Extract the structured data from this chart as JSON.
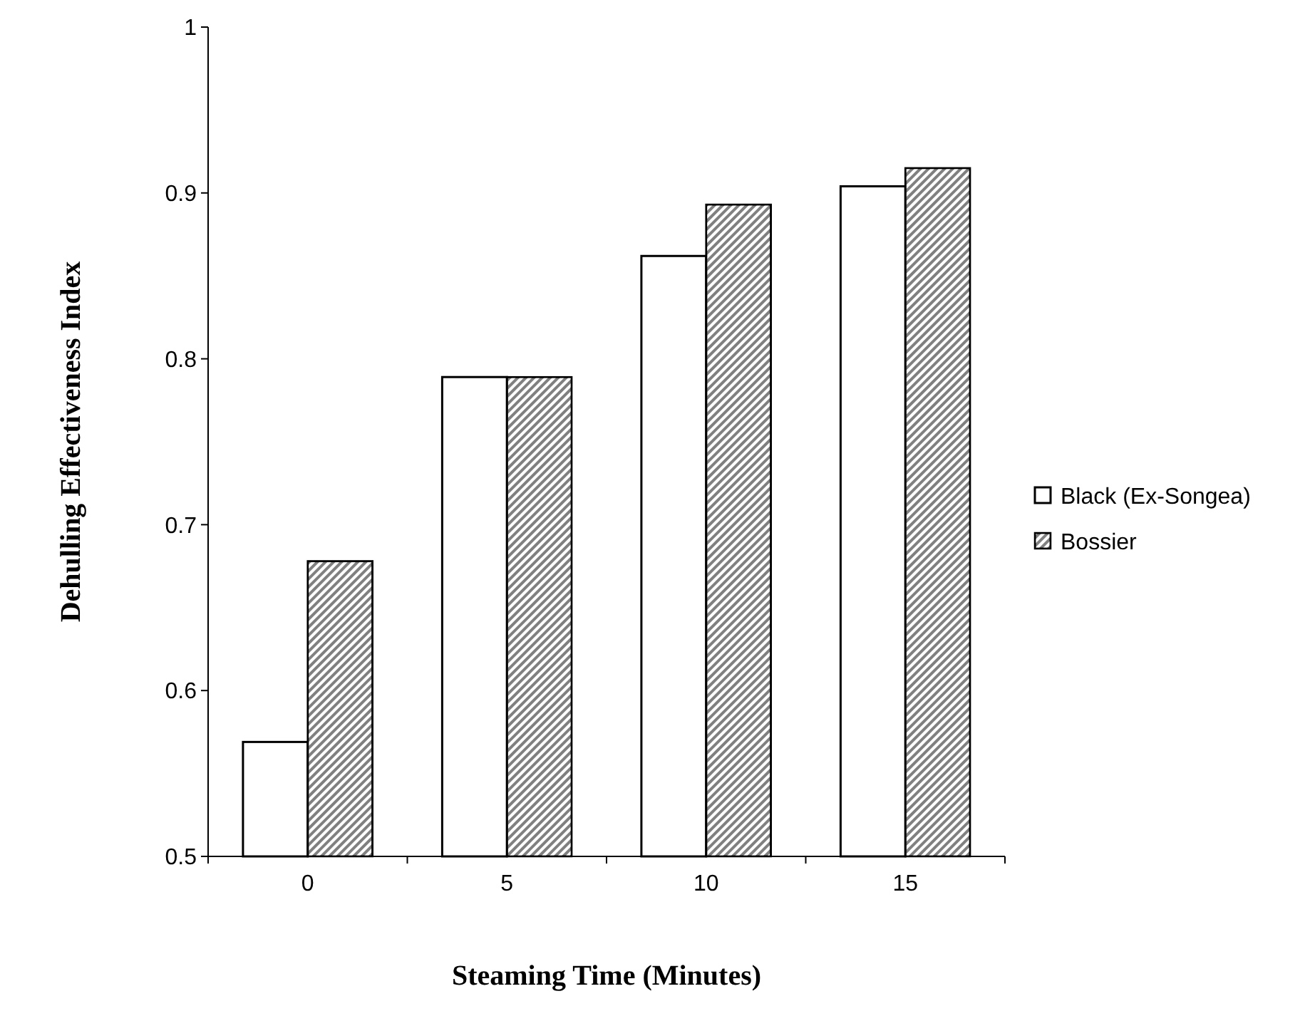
{
  "chart_data": {
    "type": "bar",
    "xlabel": "Steaming Time (Minutes)",
    "ylabel": "Dehulling Effectiveness Index",
    "categories": [
      "0",
      "5",
      "10",
      "15"
    ],
    "series": [
      {
        "name": "Black (Ex-Songea)",
        "color": "#ffffff",
        "values": [
          0.569,
          0.789,
          0.862,
          0.904
        ]
      },
      {
        "name": "Bossier",
        "color": "#808080",
        "values": [
          0.678,
          0.789,
          0.893,
          0.915
        ]
      }
    ],
    "ylim": [
      0.5,
      1
    ],
    "yticks": [
      0.5,
      0.6,
      0.7,
      0.8,
      0.9,
      1
    ],
    "grid": false,
    "legend": "right"
  }
}
